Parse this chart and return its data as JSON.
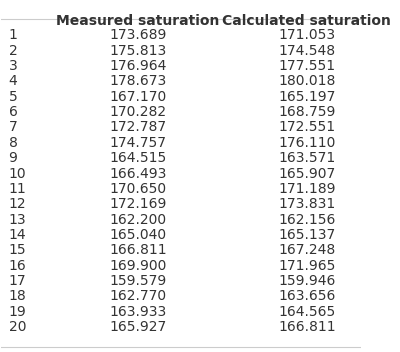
{
  "columns": [
    "Measured saturation",
    "Calculated saturation"
  ],
  "rows": [
    [
      1,
      173.689,
      171.053
    ],
    [
      2,
      175.813,
      174.548
    ],
    [
      3,
      176.964,
      177.551
    ],
    [
      4,
      178.673,
      180.018
    ],
    [
      5,
      167.17,
      165.197
    ],
    [
      6,
      170.282,
      168.759
    ],
    [
      7,
      172.787,
      172.551
    ],
    [
      8,
      174.757,
      176.11
    ],
    [
      9,
      164.515,
      163.571
    ],
    [
      10,
      166.493,
      165.907
    ],
    [
      11,
      170.65,
      171.189
    ],
    [
      12,
      172.169,
      173.831
    ],
    [
      13,
      162.2,
      162.156
    ],
    [
      14,
      165.04,
      165.137
    ],
    [
      15,
      166.811,
      167.248
    ],
    [
      16,
      169.9,
      171.965
    ],
    [
      17,
      159.579,
      159.946
    ],
    [
      18,
      162.77,
      163.656
    ],
    [
      19,
      163.933,
      164.565
    ],
    [
      20,
      165.927,
      166.811
    ]
  ],
  "bg_color": "#ffffff",
  "header_fontsize": 10,
  "cell_fontsize": 10,
  "header_color": "#ffffff",
  "line_color": "#cccccc",
  "text_color": "#333333"
}
